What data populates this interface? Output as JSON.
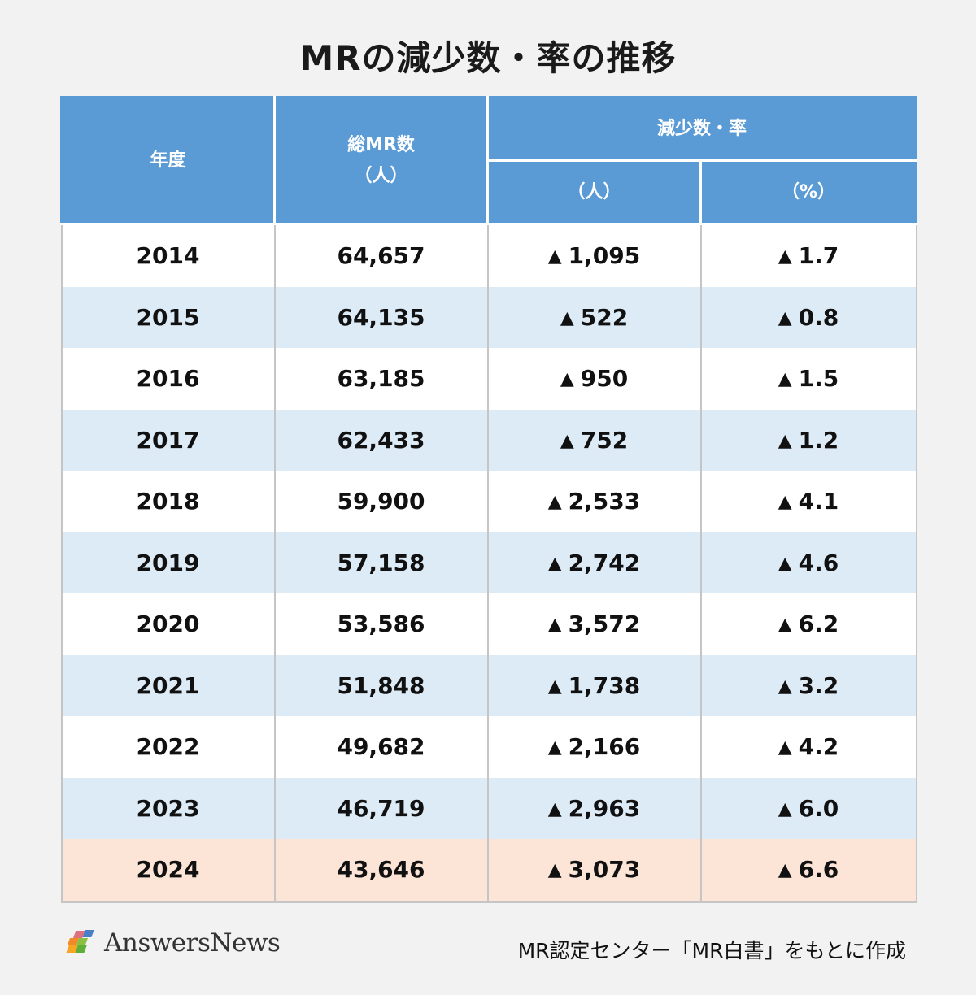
{
  "title": "MRの減少数・率の推移",
  "table": {
    "headers": {
      "year": "年度",
      "total_line1": "総MR数",
      "total_line2": "（人）",
      "decrease_group": "減少数・率",
      "decrease_count": "（人）",
      "decrease_rate": "（%）"
    },
    "marker": "▲",
    "rows": [
      {
        "year": "2014",
        "total": "64,657",
        "count": "1,095",
        "rate": "1.7"
      },
      {
        "year": "2015",
        "total": "64,135",
        "count": "522",
        "rate": "0.8"
      },
      {
        "year": "2016",
        "total": "63,185",
        "count": "950",
        "rate": "1.5"
      },
      {
        "year": "2017",
        "total": "62,433",
        "count": "752",
        "rate": "1.2"
      },
      {
        "year": "2018",
        "total": "59,900",
        "count": "2,533",
        "rate": "4.1"
      },
      {
        "year": "2019",
        "total": "57,158",
        "count": "2,742",
        "rate": "4.6"
      },
      {
        "year": "2020",
        "total": "53,586",
        "count": "3,572",
        "rate": "6.2"
      },
      {
        "year": "2021",
        "total": "51,848",
        "count": "1,738",
        "rate": "3.2"
      },
      {
        "year": "2022",
        "total": "49,682",
        "count": "2,166",
        "rate": "4.2"
      },
      {
        "year": "2023",
        "total": "46,719",
        "count": "2,963",
        "rate": "6.0"
      },
      {
        "year": "2024",
        "total": "43,646",
        "count": "3,073",
        "rate": "6.6"
      }
    ]
  },
  "colors": {
    "header_bg": "#5b9bd5",
    "row_alt_bg": "#ddebf7",
    "highlight_bg": "#fce4d6"
  },
  "footer": {
    "logo": "AnswersNews",
    "source": "MR認定センター「MR白書」をもとに作成"
  },
  "chart_data": {
    "type": "table",
    "title": "MRの減少数・率の推移",
    "columns": [
      "年度",
      "総MR数（人）",
      "減少数（人）",
      "減少率（%）"
    ],
    "categories": [
      "2014",
      "2015",
      "2016",
      "2017",
      "2018",
      "2019",
      "2020",
      "2021",
      "2022",
      "2023",
      "2024"
    ],
    "series": [
      {
        "name": "総MR数（人）",
        "values": [
          64657,
          64135,
          63185,
          62433,
          59900,
          57158,
          53586,
          51848,
          49682,
          46719,
          43646
        ]
      },
      {
        "name": "減少数（人）",
        "values": [
          -1095,
          -522,
          -950,
          -752,
          -2533,
          -2742,
          -3572,
          -1738,
          -2166,
          -2963,
          -3073
        ]
      },
      {
        "name": "減少率（%）",
        "values": [
          -1.7,
          -0.8,
          -1.5,
          -1.2,
          -4.1,
          -4.6,
          -6.2,
          -3.2,
          -4.2,
          -6.0,
          -6.6
        ]
      }
    ],
    "annotations": [
      "▲ indicates decrease",
      "2024 row highlighted"
    ],
    "source": "MR認定センター「MR白書」をもとに作成"
  }
}
